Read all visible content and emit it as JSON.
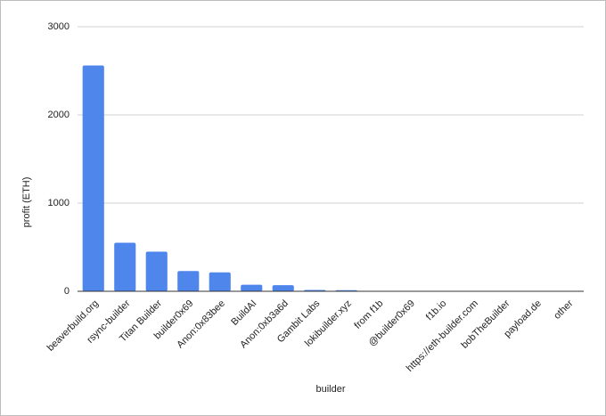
{
  "chart_data": {
    "type": "bar",
    "x_label": "builder",
    "y_label": "profit (ETH)",
    "categories": [
      "beaverbuild.org",
      "rsync-builder",
      "Titan Builder",
      "builder0x69",
      "Anon:0x83bee",
      "BuildAI",
      "Anon:0xb3a6d",
      "Gambit Labs",
      "lokibuilder.xyz",
      "from f1b",
      "@builder0x69",
      "f1b.io",
      "https://eth-builder.com",
      "bobTheBuilder",
      "payload.de",
      "other"
    ],
    "values": [
      2560,
      550,
      450,
      230,
      215,
      75,
      70,
      15,
      12,
      3,
      2,
      2,
      1,
      1,
      1,
      1
    ],
    "color": "#4f86ec",
    "ylim": [
      0,
      3000
    ],
    "yticks": [
      0,
      1000,
      2000,
      3000
    ],
    "grid": true
  }
}
